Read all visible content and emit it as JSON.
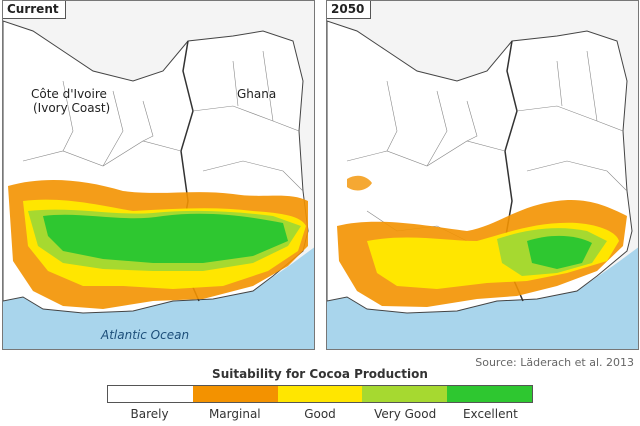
{
  "panels": {
    "left": {
      "tag": "Current",
      "label_ivory_line1": "Côte d'Ivoire",
      "label_ivory_line2": "(Ivory Coast)",
      "label_ghana": "Ghana",
      "ocean": "Atlantic Ocean"
    },
    "right": {
      "tag": "2050"
    }
  },
  "source": "Source: Läderach et al. 2013",
  "legend": {
    "title": "Suitability for Cocoa Production",
    "classes": [
      {
        "label": "Barely",
        "color": "#ffffff"
      },
      {
        "label": "Marginal",
        "color": "#f39200"
      },
      {
        "label": "Good",
        "color": "#ffe600"
      },
      {
        "label": "Very Good",
        "color": "#a6d930"
      },
      {
        "label": "Excellent",
        "color": "#2ec730"
      }
    ]
  },
  "colors": {
    "ocean": "#a9d5ec",
    "land": "#ffffff",
    "border": "#555555"
  }
}
